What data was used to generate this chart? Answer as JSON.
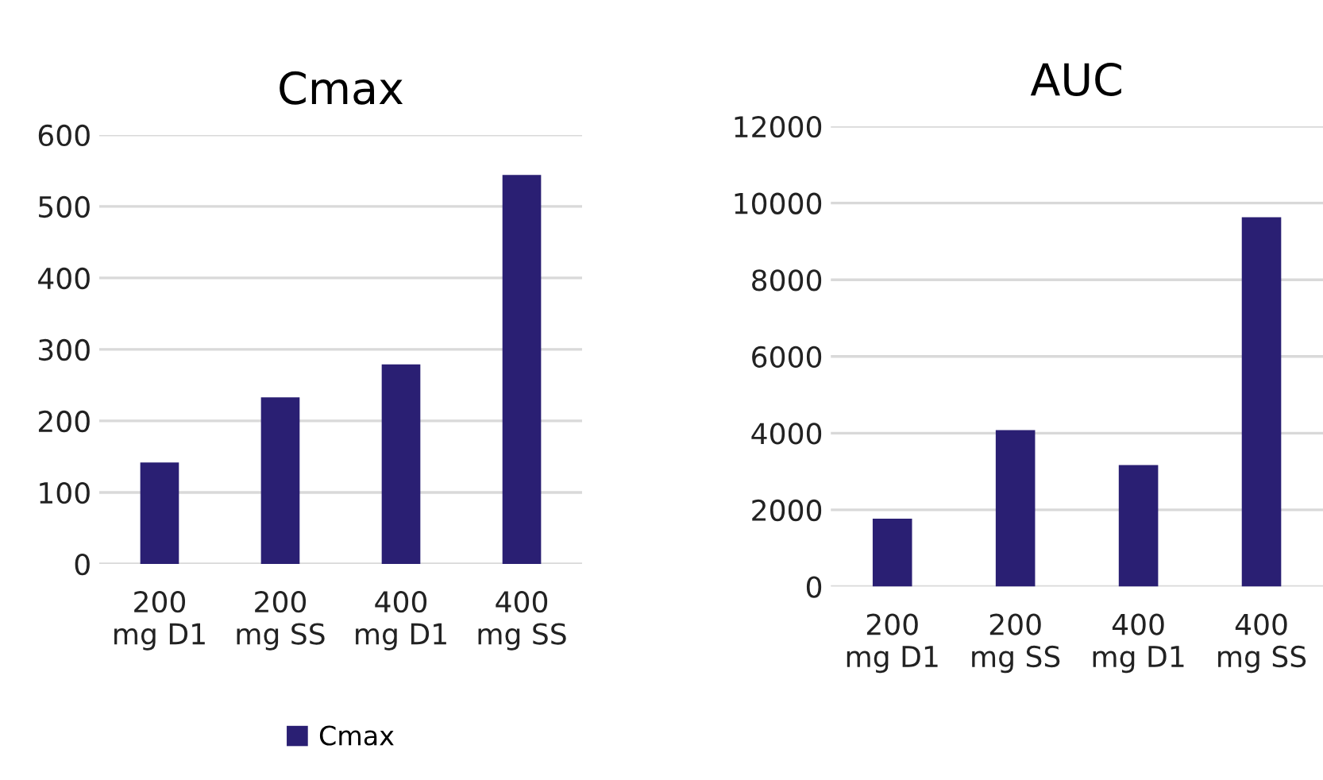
{
  "chart_data": [
    {
      "type": "bar",
      "title": "Cmax",
      "categories": [
        "200\nmg D1",
        "200\nmg SS",
        "400\nmg D1",
        "400\nmg SS"
      ],
      "series": [
        {
          "name": "Cmax",
          "color": "#2a1f73",
          "values": [
            142,
            233,
            279,
            544
          ]
        }
      ],
      "ylim": [
        0,
        600
      ],
      "yticks": [
        0,
        100,
        200,
        300,
        400,
        500,
        600
      ],
      "grid": "y",
      "legend": "bottom"
    },
    {
      "type": "bar",
      "title": "AUC",
      "categories": [
        "200\nmg D1",
        "200\nmg SS",
        "400\nmg D1",
        "400\nmg SS"
      ],
      "series": [
        {
          "color": "#2a1f73",
          "values": [
            1770,
            4080,
            3170,
            9630
          ]
        }
      ],
      "ylim": [
        0,
        12000
      ],
      "yticks": [
        0,
        2000,
        4000,
        6000,
        8000,
        10000,
        12000
      ],
      "grid": "y"
    }
  ]
}
